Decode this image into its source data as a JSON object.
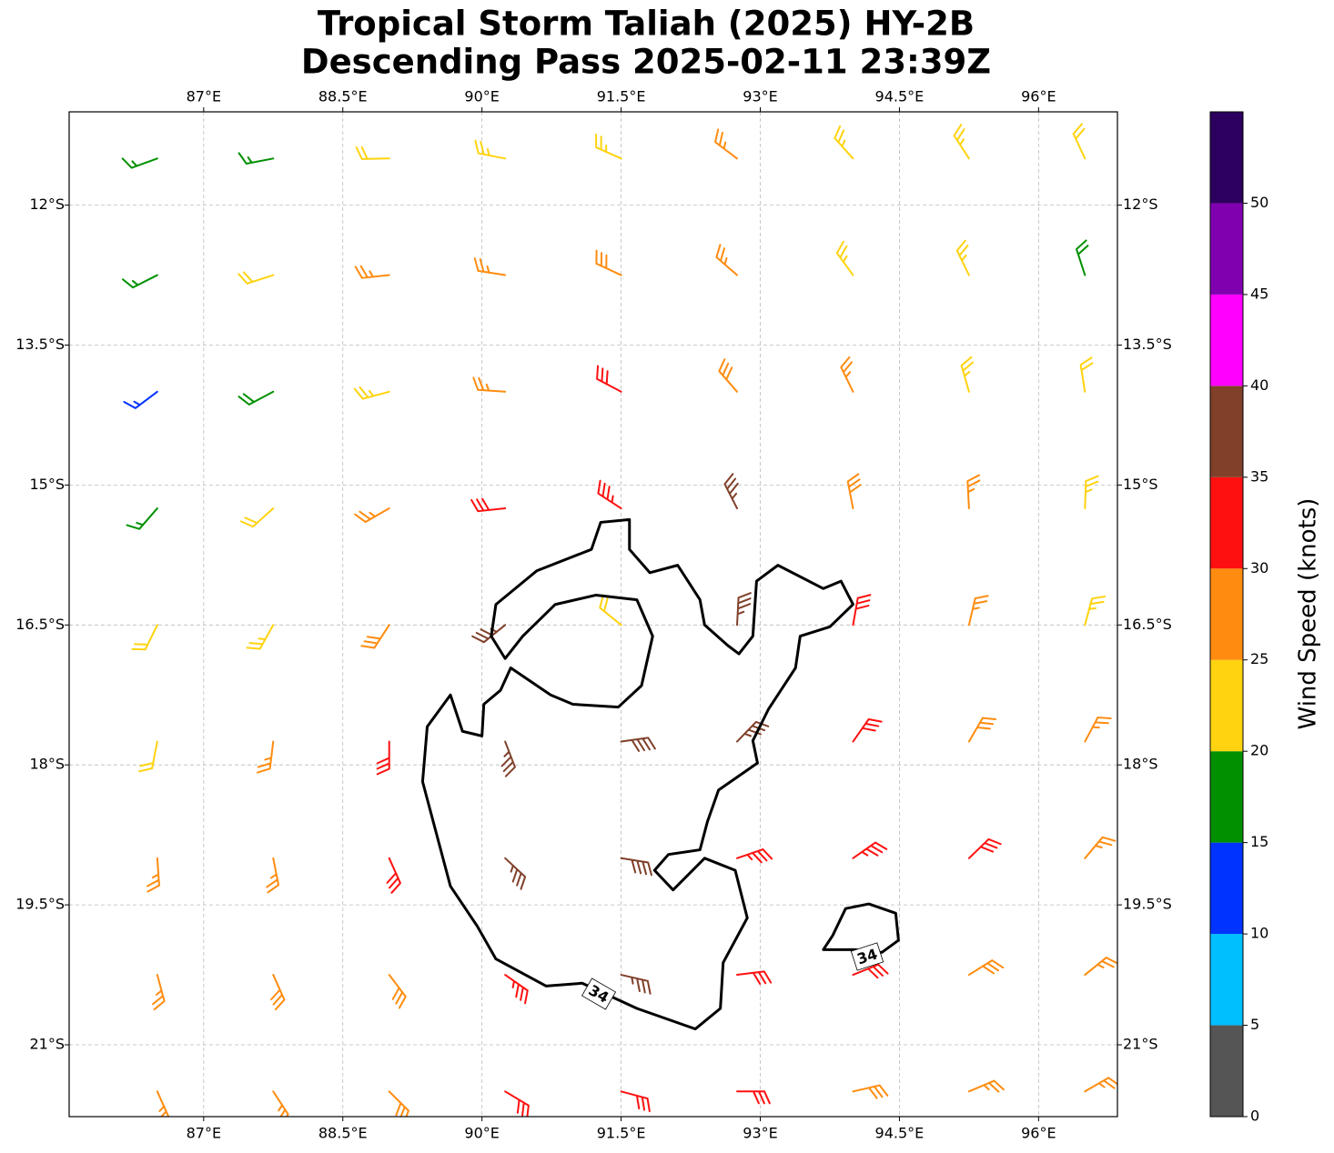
{
  "chart_data": {
    "type": "barbs",
    "title": "Tropical Storm Taliah (2025) HY-2B",
    "subtitle": "Descending Pass 2025-02-11 23:39Z",
    "xlim": [
      85.55,
      96.85
    ],
    "ylim": [
      -21.77,
      -11.0
    ],
    "xticks": [
      {
        "value": 87,
        "label": "87°E"
      },
      {
        "value": 88.5,
        "label": "88.5°E"
      },
      {
        "value": 90,
        "label": "90°E"
      },
      {
        "value": 91.5,
        "label": "91.5°E"
      },
      {
        "value": 93,
        "label": "93°E"
      },
      {
        "value": 94.5,
        "label": "94.5°E"
      },
      {
        "value": 96,
        "label": "96°E"
      }
    ],
    "yticks": [
      {
        "value": -12,
        "label": "12°S"
      },
      {
        "value": -13.5,
        "label": "13.5°S"
      },
      {
        "value": -15,
        "label": "15°S"
      },
      {
        "value": -16.5,
        "label": "16.5°S"
      },
      {
        "value": -18,
        "label": "18°S"
      },
      {
        "value": -19.5,
        "label": "19.5°S"
      },
      {
        "value": -21,
        "label": "21°S"
      }
    ],
    "grid": true,
    "x": [
      86.5,
      87.75,
      89,
      90.25,
      91.5,
      92.75,
      94,
      95.25,
      96.5
    ],
    "y": [
      -11.5,
      -12.75,
      -14,
      -15.25,
      -16.5,
      -17.75,
      -19,
      -20.25,
      -21.5
    ],
    "speed": [
      [
        17,
        17,
        22,
        23,
        24,
        26,
        24,
        23,
        21
      ],
      [
        17,
        21,
        26,
        27,
        28,
        27,
        24,
        23,
        19
      ],
      [
        13,
        19,
        24,
        27,
        31,
        28,
        26,
        23,
        21
      ],
      [
        17,
        22,
        26,
        31,
        33,
        36,
        29,
        26,
        23
      ],
      [
        21,
        24,
        28,
        36,
        22,
        37,
        31,
        27,
        24
      ],
      [
        22,
        26,
        31,
        36,
        38,
        36,
        32,
        29,
        26
      ],
      [
        26,
        27,
        30,
        36,
        38,
        34,
        33,
        31,
        27
      ],
      [
        27,
        28,
        29,
        33,
        35,
        32,
        30,
        28,
        26
      ],
      [
        26,
        27,
        28,
        31,
        31,
        30,
        28,
        27,
        26
      ]
    ],
    "direction": [
      [
        250,
        259,
        269,
        281,
        294,
        307,
        318,
        327,
        335
      ],
      [
        243,
        252,
        264,
        279,
        295,
        311,
        324,
        334,
        342
      ],
      [
        233,
        242,
        255,
        274,
        298,
        319,
        334,
        344,
        351
      ],
      [
        221,
        228,
        240,
        264,
        303,
        333,
        349,
        357,
        2
      ],
      [
        206,
        209,
        213,
        231,
        309,
        3,
        10,
        13,
        15
      ],
      [
        191,
        187,
        180,
        159,
        82,
        44,
        35,
        30,
        28
      ],
      [
        176,
        169,
        156,
        133,
        99,
        71,
        55,
        46,
        40
      ],
      [
        165,
        156,
        143,
        125,
        103,
        83,
        68,
        58,
        51
      ],
      [
        156,
        147,
        135,
        121,
        105,
        90,
        77,
        67,
        60
      ]
    ],
    "contour": {
      "level": 34,
      "color": "#000000",
      "paths": [
        [
          [
            91.28,
            -15.4
          ],
          [
            91.59,
            -15.37
          ],
          [
            91.59,
            -15.69
          ],
          [
            91.81,
            -15.94
          ],
          [
            92.11,
            -15.86
          ],
          [
            92.35,
            -16.23
          ],
          [
            92.4,
            -16.5
          ],
          [
            92.65,
            -16.72
          ],
          [
            92.77,
            -16.81
          ],
          [
            92.92,
            -16.62
          ],
          [
            92.96,
            -16.03
          ],
          [
            93.19,
            -15.86
          ],
          [
            93.68,
            -16.11
          ],
          [
            93.87,
            -16.03
          ],
          [
            94.0,
            -16.28
          ],
          [
            93.75,
            -16.52
          ],
          [
            93.43,
            -16.62
          ],
          [
            93.38,
            -16.96
          ],
          [
            93.09,
            -17.4
          ],
          [
            92.92,
            -17.74
          ],
          [
            92.97,
            -17.98
          ],
          [
            92.55,
            -18.27
          ],
          [
            92.43,
            -18.61
          ],
          [
            92.35,
            -18.91
          ],
          [
            92.01,
            -18.96
          ],
          [
            91.86,
            -19.13
          ],
          [
            92.06,
            -19.34
          ],
          [
            92.4,
            -19.0
          ],
          [
            92.73,
            -19.13
          ],
          [
            92.86,
            -19.64
          ],
          [
            92.6,
            -20.12
          ],
          [
            92.57,
            -20.61
          ],
          [
            92.3,
            -20.83
          ],
          [
            91.67,
            -20.61
          ],
          [
            91.08,
            -20.34
          ],
          [
            90.69,
            -20.37
          ],
          [
            90.15,
            -20.08
          ],
          [
            89.95,
            -19.73
          ],
          [
            89.66,
            -19.3
          ],
          [
            89.36,
            -18.18
          ],
          [
            89.41,
            -17.59
          ],
          [
            89.66,
            -17.25
          ],
          [
            89.79,
            -17.64
          ],
          [
            90.0,
            -17.69
          ],
          [
            90.02,
            -17.35
          ],
          [
            90.2,
            -17.2
          ],
          [
            90.31,
            -16.96
          ],
          [
            90.74,
            -17.25
          ],
          [
            90.98,
            -17.35
          ],
          [
            91.47,
            -17.38
          ],
          [
            91.72,
            -17.15
          ],
          [
            91.84,
            -16.62
          ],
          [
            91.67,
            -16.23
          ],
          [
            91.23,
            -16.18
          ],
          [
            90.79,
            -16.28
          ],
          [
            90.44,
            -16.62
          ],
          [
            90.25,
            -16.86
          ],
          [
            90.1,
            -16.62
          ],
          [
            90.15,
            -16.28
          ],
          [
            90.59,
            -15.92
          ],
          [
            91.18,
            -15.69
          ],
          [
            91.28,
            -15.4
          ]
        ],
        [
          [
            93.68,
            -19.98
          ],
          [
            93.78,
            -19.83
          ],
          [
            93.92,
            -19.54
          ],
          [
            94.17,
            -19.49
          ],
          [
            94.46,
            -19.59
          ],
          [
            94.49,
            -19.88
          ],
          [
            94.31,
            -20.01
          ],
          [
            94.02,
            -19.98
          ],
          [
            93.68,
            -19.98
          ]
        ]
      ]
    },
    "colorbar": {
      "label": "Wind Speed (knots)",
      "levels": [
        0,
        5,
        10,
        15,
        20,
        25,
        30,
        35,
        40,
        45,
        50,
        55
      ],
      "colors": [
        "#555555",
        "#00bfff",
        "#0033ff",
        "#009000",
        "#ffd30f",
        "#ff8c10",
        "#ff1010",
        "#80402a",
        "#ff00ff",
        "#8000b0",
        "#2d005f"
      ],
      "ticks": [
        0,
        5,
        10,
        15,
        20,
        25,
        30,
        35,
        40,
        45,
        50
      ]
    }
  }
}
